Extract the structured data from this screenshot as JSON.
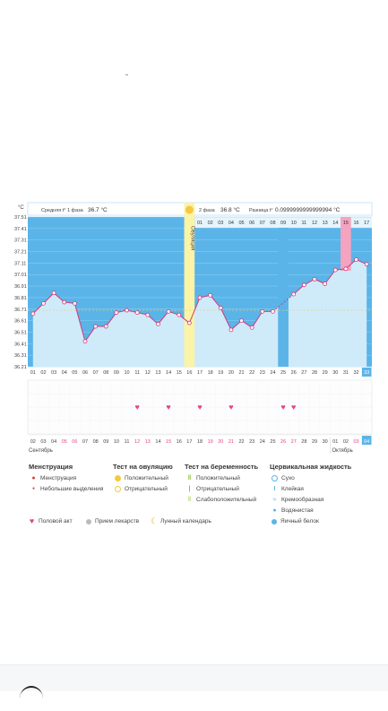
{
  "header": {
    "unit": "°C",
    "phase1_label": "Средняя t° 1 фаза",
    "phase1_value": "36.7 °C",
    "phase2_label": "2 фаза",
    "phase2_value": "36.8 °C",
    "diff_label": "Разница t°",
    "diff_value": "0.0999999999999994 °C",
    "ovulation_label": "Овуляция"
  },
  "chart_data": {
    "type": "line",
    "ylabels": [
      "37.51",
      "37.41",
      "37.31",
      "37.21",
      "37.11",
      "37.01",
      "36.91",
      "36.81",
      "36.71",
      "36.61",
      "36.51",
      "36.41",
      "36.31",
      "36.21"
    ],
    "ylim": [
      36.21,
      37.51
    ],
    "cycle_days": [
      "01",
      "02",
      "03",
      "04",
      "05",
      "06",
      "07",
      "08",
      "09",
      "10",
      "11",
      "12",
      "13",
      "14",
      "15",
      "16",
      "17",
      "18",
      "19",
      "20",
      "21",
      "22",
      "23",
      "24",
      "25",
      "26",
      "27",
      "28",
      "29",
      "30",
      "31",
      "32",
      "33"
    ],
    "phase2_days": [
      "01",
      "02",
      "03",
      "04",
      "05",
      "06",
      "07",
      "08",
      "09",
      "10",
      "11",
      "12",
      "13",
      "14",
      "15",
      "16",
      "17"
    ],
    "temps": [
      36.67,
      36.76,
      36.85,
      36.77,
      36.76,
      36.43,
      36.56,
      36.56,
      36.68,
      36.7,
      36.68,
      36.66,
      36.58,
      36.69,
      36.66,
      36.59,
      36.81,
      36.83,
      36.72,
      36.53,
      36.61,
      36.55,
      36.69,
      36.69,
      null,
      36.84,
      36.92,
      36.97,
      36.93,
      37.05,
      37.06,
      37.14,
      37.1
    ],
    "coverline": 36.7,
    "ovulation_day_index": 15,
    "highlight_phase2_index": 14,
    "current_day_index": 32,
    "missing_day_index": 24
  },
  "intercourse_days": [
    10,
    13,
    16,
    19,
    24,
    25
  ],
  "dates": [
    "02",
    "03",
    "04",
    "05",
    "06",
    "07",
    "08",
    "09",
    "10",
    "11",
    "12",
    "13",
    "14",
    "15",
    "16",
    "17",
    "18",
    "19",
    "20",
    "21",
    "22",
    "23",
    "24",
    "25",
    "26",
    "27",
    "28",
    "29",
    "30",
    "01",
    "02",
    "03",
    "04"
  ],
  "red_dates": [
    3,
    4,
    10,
    11,
    13,
    17,
    18,
    19,
    24,
    25,
    31
  ],
  "months": {
    "first": "Сентябрь",
    "second": "Октябрь"
  },
  "legend": {
    "menstruation": {
      "title": "Менструация",
      "items": [
        "Менструация",
        "Небольшие выделения"
      ]
    },
    "ovulation_test": {
      "title": "Тест на овуляцию",
      "items": [
        "Положительный",
        "Отрицательный"
      ]
    },
    "pregnancy_test": {
      "title": "Тест на беременность",
      "items": [
        "Положительный",
        "Отрицательный",
        "Слабоположительный"
      ]
    },
    "cervical": {
      "title": "Цервикальная жидкость",
      "items": [
        "Сухо",
        "Клейкая",
        "Кремообразная",
        "Водянистая",
        "Яичный белок"
      ]
    },
    "extra": [
      "Половой акт",
      "Прием лекарств",
      "Лунный календарь"
    ]
  },
  "colors": {
    "chart_bg": "#5ab4e8",
    "grid_line": "#8fd0f3",
    "fill": "#cfeaf9",
    "line": "#d23a7a",
    "ovulation": "#fbf3a6",
    "highlight": "#f4a3c0",
    "heart": "#e6408c",
    "date_red": "#e6408c"
  }
}
